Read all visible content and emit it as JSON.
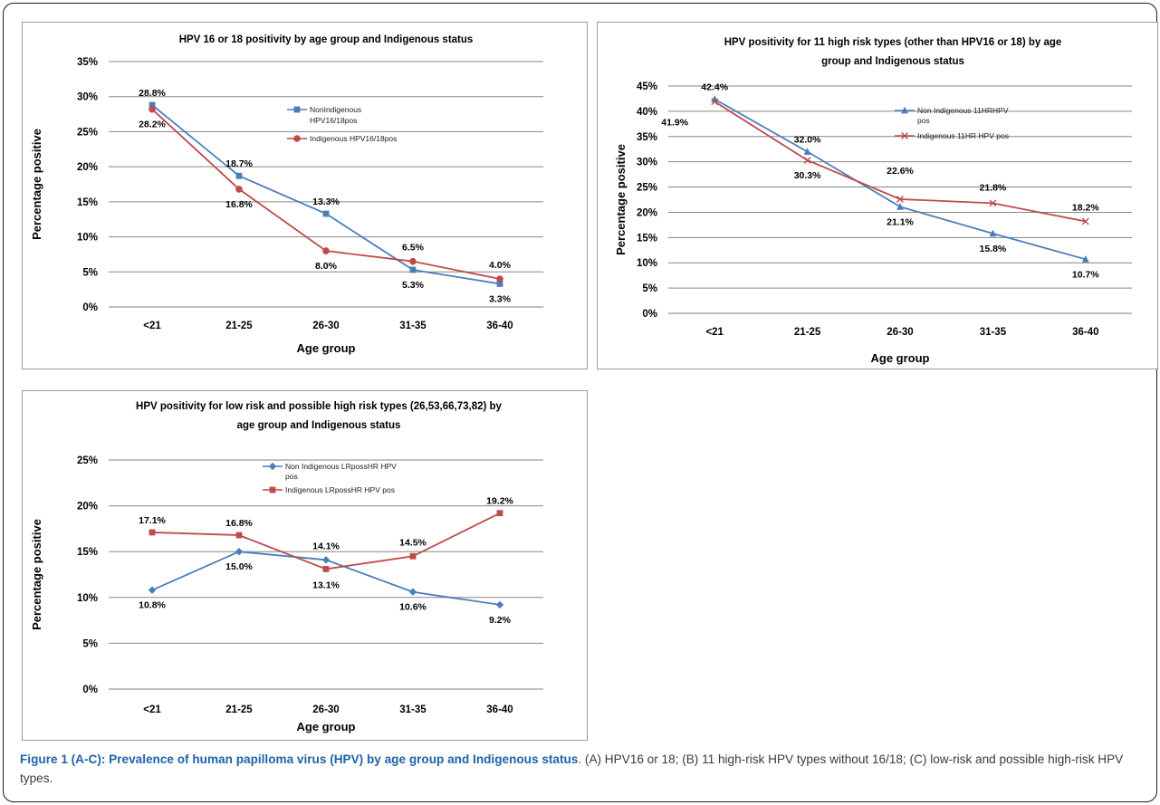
{
  "caption": {
    "label": "Figure 1 (A-C):",
    "title": " Prevalence of human papilloma virus (HPV) by age group and Indigenous status",
    "text": ". (A) HPV16 or 18; (B) 11 high-risk HPV types without 16/18; (C) low-risk and possible high-risk HPV types."
  },
  "colors": {
    "blue": "#4a7ebb",
    "red": "#be4b48",
    "grid": "#868686"
  },
  "chart_data": [
    {
      "type": "line",
      "title": [
        "HPV 16 or 18 positivity by age group and Indigenous status"
      ],
      "xlabel": "Age group",
      "ylabel": "Percentage positive",
      "categories": [
        "<21",
        "21-25",
        "26-30",
        "31-35",
        "36-40"
      ],
      "ylim": [
        0,
        35
      ],
      "yticks": [
        "0%",
        "5%",
        "10%",
        "15%",
        "20%",
        "25%",
        "30%",
        "35%"
      ],
      "grid": true,
      "legend": "top-right",
      "series": [
        {
          "name": [
            "NonIndigenous",
            "HPV16/18pos"
          ],
          "color": "#4a7ebb",
          "marker": "square",
          "values": [
            28.8,
            18.7,
            13.3,
            5.3,
            3.3
          ],
          "labels": [
            "28.8%",
            "18.7%",
            "13.3%",
            "5.3%",
            "3.3%"
          ]
        },
        {
          "name": [
            "Indigenous HPV16/18pos"
          ],
          "color": "#be4b48",
          "marker": "circle",
          "values": [
            28.2,
            16.8,
            8.0,
            6.5,
            4.0
          ],
          "labels": [
            "28.2%",
            "16.8%",
            "8.0%",
            "6.5%",
            "4.0%"
          ]
        }
      ]
    },
    {
      "type": "line",
      "title": [
        "HPV positivity for 11 high risk types (other than HPV16 or 18) by age",
        "group and Indigenous status"
      ],
      "xlabel": "Age group",
      "ylabel": "Percentage positive",
      "categories": [
        "<21",
        "21-25",
        "26-30",
        "31-35",
        "36-40"
      ],
      "ylim": [
        0,
        45
      ],
      "yticks": [
        "0%",
        "5%",
        "10%",
        "15%",
        "20%",
        "25%",
        "30%",
        "35%",
        "40%",
        "45%"
      ],
      "grid": true,
      "legend": "top-right",
      "series": [
        {
          "name": [
            "Non Indigenous 11HRHPV",
            "pos"
          ],
          "color": "#4a7ebb",
          "marker": "triangle",
          "values": [
            42.4,
            32.0,
            21.1,
            15.8,
            10.7
          ],
          "labels": [
            "42.4%",
            "32.0%",
            "21.1%",
            "15.8%",
            "10.7%"
          ]
        },
        {
          "name": [
            "Indigenous 11HR HPV pos"
          ],
          "color": "#be4b48",
          "marker": "x",
          "values": [
            41.9,
            30.3,
            22.6,
            21.8,
            18.2
          ],
          "labels": [
            "41.9%",
            "30.3%",
            "22.6%",
            "21.8%",
            "18.2%"
          ]
        }
      ]
    },
    {
      "type": "line",
      "title": [
        "HPV positivity for low risk and possible high risk types (26,53,66,73,82) by",
        "age group and Indigenous status"
      ],
      "xlabel": "Age group",
      "ylabel": "Percentage positive",
      "categories": [
        "<21",
        "21-25",
        "26-30",
        "31-35",
        "36-40"
      ],
      "ylim": [
        0,
        25
      ],
      "yticks": [
        "0%",
        "5%",
        "10%",
        "15%",
        "20%",
        "25%"
      ],
      "grid": true,
      "legend": "top-right",
      "series": [
        {
          "name": [
            "Non Indigenous LRpossHR HPV",
            "pos"
          ],
          "color": "#4a7ebb",
          "marker": "diamond",
          "values": [
            10.8,
            15.0,
            14.1,
            10.6,
            9.2
          ],
          "labels": [
            "10.8%",
            "15.0%",
            "14.1%",
            "10.6%",
            "9.2%"
          ]
        },
        {
          "name": [
            "Indigenous LRpossHR HPV pos"
          ],
          "color": "#be4b48",
          "marker": "square",
          "values": [
            17.1,
            16.8,
            13.1,
            14.5,
            19.2
          ],
          "labels": [
            "17.1%",
            "16.8%",
            "13.1%",
            "14.5%",
            "19.2%"
          ]
        }
      ]
    }
  ]
}
